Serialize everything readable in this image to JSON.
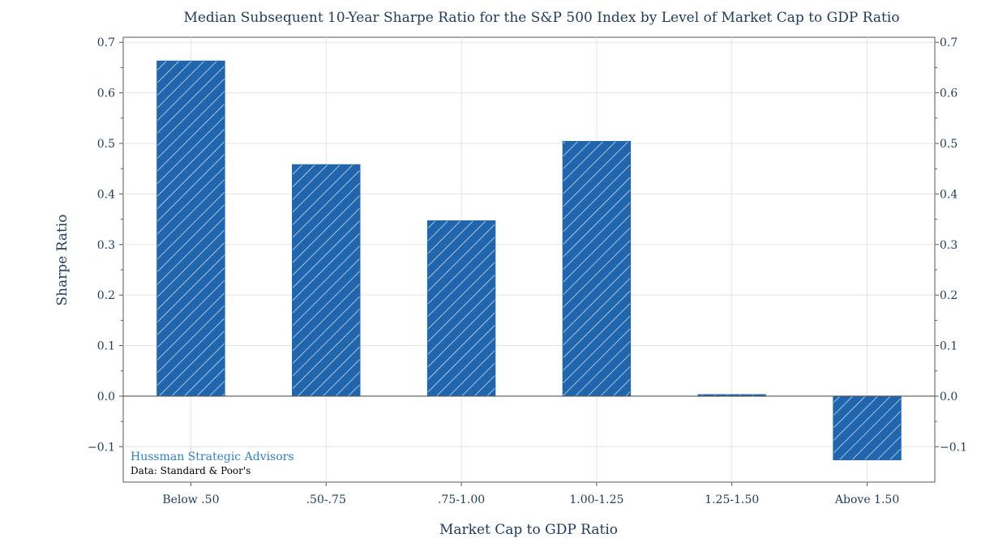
{
  "colors": {
    "bar_fill": "#2166ac",
    "hatch": "#c9daf0",
    "grid": "#e3e3e3",
    "axis": "#555555",
    "text": "#1f3b5c",
    "watermark": "#2f7fc1"
  },
  "chart_data": {
    "type": "bar",
    "title": "Median Subsequent 10-Year Sharpe Ratio for the S&P 500 Index by Level of Market Cap to GDP Ratio",
    "xlabel": "Market Cap to GDP Ratio",
    "ylabel": "Sharpe Ratio",
    "categories": [
      "Below .50",
      ".50-.75",
      ".75-1.00",
      "1.00-1.25",
      "1.25-1.50",
      "Above 1.50"
    ],
    "values": [
      0.663,
      0.458,
      0.347,
      0.504,
      0.003,
      -0.126
    ],
    "ylim": [
      -0.17,
      0.71
    ],
    "yticks": [
      -0.1,
      0.0,
      0.1,
      0.2,
      0.3,
      0.4,
      0.5,
      0.6,
      0.7
    ],
    "ytick_labels": [
      "−0.1",
      "0.0",
      "0.1",
      "0.2",
      "0.3",
      "0.4",
      "0.5",
      "0.6",
      "0.7"
    ],
    "grid": true,
    "hatch": "diagonal",
    "secondary_y_axis": true
  },
  "watermark": {
    "org": "Hussman Strategic Advisors",
    "source": "Data: Standard & Poor's"
  }
}
